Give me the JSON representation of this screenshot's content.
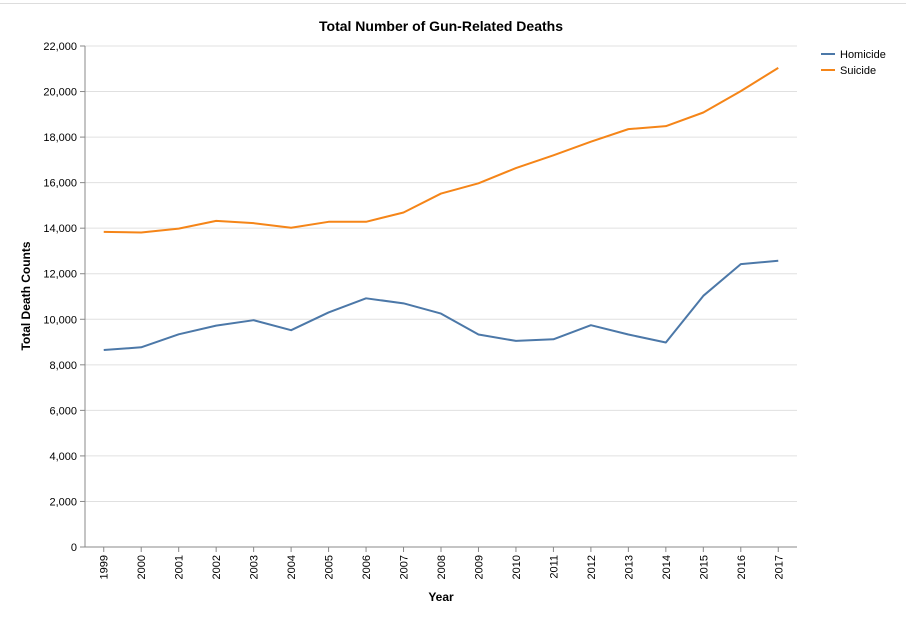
{
  "chart_data": {
    "type": "line",
    "title": "Total Number of Gun-Related Deaths",
    "xlabel": "Year",
    "ylabel": "Total Death Counts",
    "ylim": [
      0,
      22000
    ],
    "yticks": [
      0,
      2000,
      4000,
      6000,
      8000,
      10000,
      12000,
      14000,
      16000,
      18000,
      20000,
      22000
    ],
    "ytick_labels": [
      "0",
      "2,000",
      "4,000",
      "6,000",
      "8,000",
      "10,000",
      "12,000",
      "14,000",
      "16,000",
      "18,000",
      "20,000",
      "22,000"
    ],
    "grid": "horizontal",
    "legend": "top-right",
    "x": [
      "1999",
      "2000",
      "2001",
      "2002",
      "2003",
      "2004",
      "2005",
      "2006",
      "2007",
      "2008",
      "2009",
      "2010",
      "2011",
      "2012",
      "2013",
      "2014",
      "2015",
      "2016",
      "2017"
    ],
    "series": [
      {
        "name": "Homicide",
        "color": "#4c78a8",
        "values": [
          8650,
          8770,
          9340,
          9720,
          9960,
          9520,
          10300,
          10920,
          10700,
          10250,
          9330,
          9050,
          9120,
          9740,
          9330,
          8980,
          11030,
          12420,
          12570
        ]
      },
      {
        "name": "Suicide",
        "color": "#f58518",
        "values": [
          13840,
          13810,
          13980,
          14320,
          14220,
          14020,
          14280,
          14280,
          14690,
          15520,
          15970,
          16640,
          17200,
          17800,
          18350,
          18480,
          19080,
          20020,
          21040
        ]
      }
    ]
  }
}
